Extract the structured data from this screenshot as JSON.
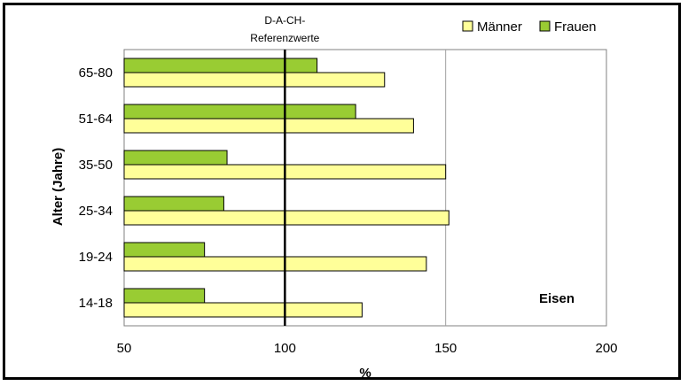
{
  "chart_data": {
    "type": "bar",
    "orientation": "horizontal",
    "categories": [
      "14-18",
      "19-24",
      "25-34",
      "35-50",
      "51-64",
      "65-80"
    ],
    "series": [
      {
        "name": "Männer",
        "color": "#ffff99",
        "values": [
          124,
          144,
          151,
          150,
          140,
          131
        ]
      },
      {
        "name": "Frauen",
        "color": "#99cc33",
        "values": [
          75,
          75,
          81,
          82,
          122,
          110
        ]
      }
    ],
    "xlabel": "%",
    "ylabel": "Alter (Jahre)",
    "xlim": [
      50,
      200
    ],
    "xticks": [
      50,
      100,
      150,
      200
    ],
    "gridlines_x": [
      150
    ],
    "reference_line": {
      "value": 100,
      "label_line1": "D-A-CH-",
      "label_line2": "Referenzwerte"
    },
    "annotation": "Eisen",
    "legend_position": "top-right"
  }
}
